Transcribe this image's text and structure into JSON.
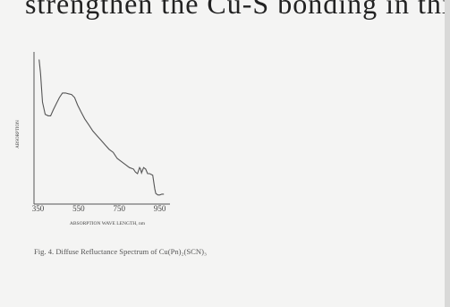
{
  "header_fragment": "strengthen the Cu-S bonding in this",
  "caption": "Fig. 4. Diffuse Refluctance Spectrum of Cu(Pn)₂(SCN)₃",
  "chart_data": {
    "type": "line",
    "title": "",
    "xlabel": "ABSORPTION   WAVE LENGTH, nm",
    "ylabel": "ABSORPTION",
    "x_ticks": [
      350,
      550,
      750,
      950
    ],
    "xlim": [
      330,
      1000
    ],
    "ylim": [
      0,
      1
    ],
    "grid": false,
    "series": [
      {
        "x": [
          355,
          362,
          372,
          385,
          400,
          412,
          425,
          440,
          455,
          470,
          485,
          500,
          515,
          530,
          545,
          560,
          580,
          600,
          620,
          640,
          660,
          680,
          700,
          720,
          740,
          760,
          780,
          800,
          820,
          830,
          840,
          850,
          855,
          860,
          870,
          880,
          890,
          900,
          915,
          925,
          930,
          940,
          950,
          960,
          970
        ],
        "y": [
          0.95,
          0.86,
          0.67,
          0.59,
          0.58,
          0.58,
          0.62,
          0.66,
          0.7,
          0.73,
          0.73,
          0.725,
          0.72,
          0.7,
          0.65,
          0.61,
          0.56,
          0.52,
          0.48,
          0.45,
          0.42,
          0.39,
          0.36,
          0.34,
          0.3,
          0.28,
          0.26,
          0.24,
          0.23,
          0.21,
          0.2,
          0.24,
          0.23,
          0.205,
          0.24,
          0.23,
          0.2,
          0.2,
          0.19,
          0.1,
          0.07,
          0.06,
          0.06,
          0.065,
          0.065
        ]
      }
    ]
  }
}
